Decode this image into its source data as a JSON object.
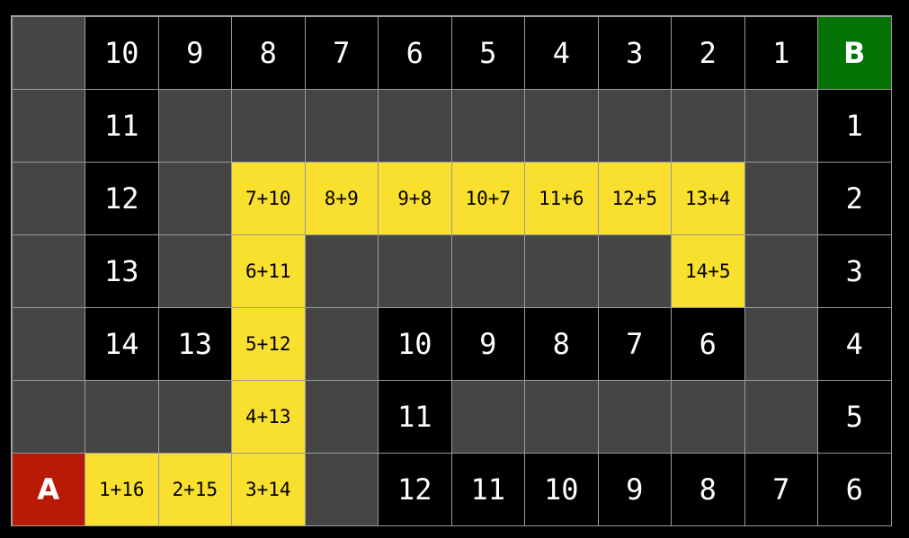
{
  "colors": {
    "wall": "#454545",
    "open": "#000000",
    "path": "#f9df2e",
    "start": "#b81a05",
    "goal": "#037303"
  },
  "grid": [
    [
      [
        "wall",
        ""
      ],
      [
        "open",
        "10"
      ],
      [
        "open",
        "9"
      ],
      [
        "open",
        "8"
      ],
      [
        "open",
        "7"
      ],
      [
        "open",
        "6"
      ],
      [
        "open",
        "5"
      ],
      [
        "open",
        "4"
      ],
      [
        "open",
        "3"
      ],
      [
        "open",
        "2"
      ],
      [
        "open",
        "1"
      ],
      [
        "goal",
        "B"
      ]
    ],
    [
      [
        "wall",
        ""
      ],
      [
        "open",
        "11"
      ],
      [
        "wall",
        ""
      ],
      [
        "wall",
        ""
      ],
      [
        "wall",
        ""
      ],
      [
        "wall",
        ""
      ],
      [
        "wall",
        ""
      ],
      [
        "wall",
        ""
      ],
      [
        "wall",
        ""
      ],
      [
        "wall",
        ""
      ],
      [
        "wall",
        ""
      ],
      [
        "open",
        "1"
      ]
    ],
    [
      [
        "wall",
        ""
      ],
      [
        "open",
        "12"
      ],
      [
        "wall",
        ""
      ],
      [
        "path",
        "7+10"
      ],
      [
        "path",
        "8+9"
      ],
      [
        "path",
        "9+8"
      ],
      [
        "path",
        "10+7"
      ],
      [
        "path",
        "11+6"
      ],
      [
        "path",
        "12+5"
      ],
      [
        "path",
        "13+4"
      ],
      [
        "wall",
        ""
      ],
      [
        "open",
        "2"
      ]
    ],
    [
      [
        "wall",
        ""
      ],
      [
        "open",
        "13"
      ],
      [
        "wall",
        ""
      ],
      [
        "path",
        "6+11"
      ],
      [
        "wall",
        ""
      ],
      [
        "wall",
        ""
      ],
      [
        "wall",
        ""
      ],
      [
        "wall",
        ""
      ],
      [
        "wall",
        ""
      ],
      [
        "path",
        "14+5"
      ],
      [
        "wall",
        ""
      ],
      [
        "open",
        "3"
      ]
    ],
    [
      [
        "wall",
        ""
      ],
      [
        "open",
        "14"
      ],
      [
        "open",
        "13"
      ],
      [
        "path",
        "5+12"
      ],
      [
        "wall",
        ""
      ],
      [
        "open",
        "10"
      ],
      [
        "open",
        "9"
      ],
      [
        "open",
        "8"
      ],
      [
        "open",
        "7"
      ],
      [
        "open",
        "6"
      ],
      [
        "wall",
        ""
      ],
      [
        "open",
        "4"
      ]
    ],
    [
      [
        "wall",
        ""
      ],
      [
        "wall",
        ""
      ],
      [
        "wall",
        ""
      ],
      [
        "path",
        "4+13"
      ],
      [
        "wall",
        ""
      ],
      [
        "open",
        "11"
      ],
      [
        "wall",
        ""
      ],
      [
        "wall",
        ""
      ],
      [
        "wall",
        ""
      ],
      [
        "wall",
        ""
      ],
      [
        "wall",
        ""
      ],
      [
        "open",
        "5"
      ]
    ],
    [
      [
        "start",
        "A"
      ],
      [
        "path",
        "1+16"
      ],
      [
        "path",
        "2+15"
      ],
      [
        "path",
        "3+14"
      ],
      [
        "wall",
        ""
      ],
      [
        "open",
        "12"
      ],
      [
        "open",
        "11"
      ],
      [
        "open",
        "10"
      ],
      [
        "open",
        "9"
      ],
      [
        "open",
        "8"
      ],
      [
        "open",
        "7"
      ],
      [
        "open",
        "6"
      ]
    ]
  ]
}
